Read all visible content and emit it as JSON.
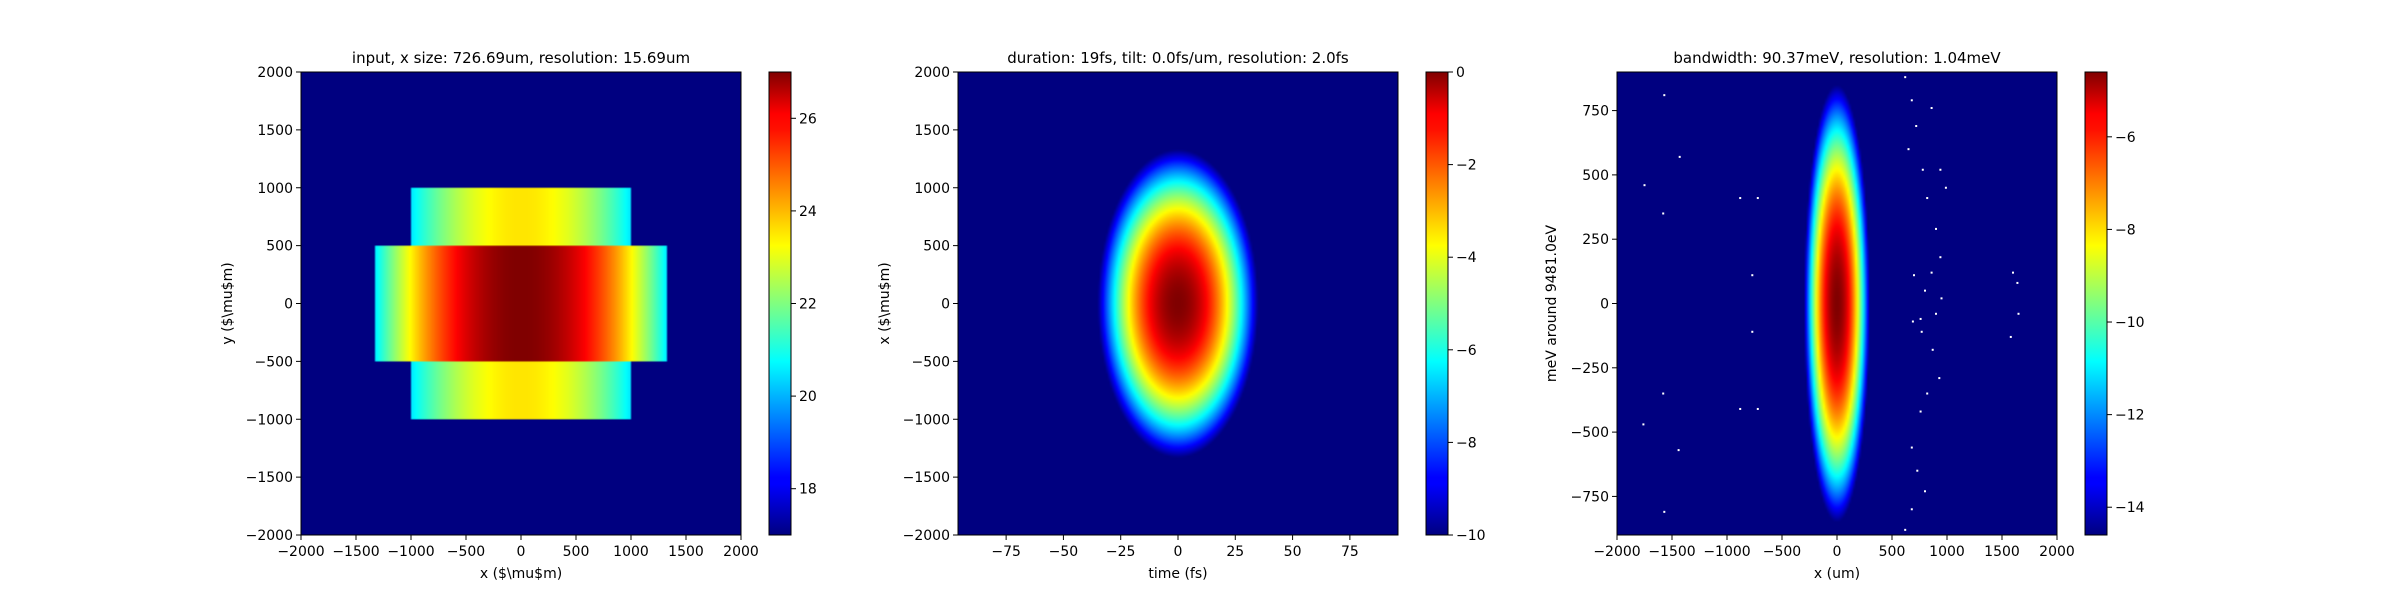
{
  "chart_data": [
    {
      "type": "heatmap",
      "title": "input, x size: 726.69um, resolution: 15.69um",
      "xlabel": "x ($\\mu$m)",
      "ylabel": "y ($\\mu$m)",
      "xlim": [
        -2000,
        2000
      ],
      "ylim": [
        -2000,
        2000
      ],
      "xticks": [
        -2000,
        -1500,
        -1000,
        -500,
        0,
        500,
        1000,
        1500,
        2000
      ],
      "yticks": [
        -2000,
        -1500,
        -1000,
        -500,
        0,
        500,
        1000,
        1500,
        2000
      ],
      "colormap": "jet",
      "colorbar": {
        "range": [
          17,
          27
        ],
        "ticks": [
          18,
          20,
          22,
          24,
          26
        ]
      },
      "background_value": 17,
      "field": {
        "description_kind": "stepped rectangular beam",
        "peak_value": 27,
        "regions": [
          {
            "x_range": [
              -1000,
              1000
            ],
            "y_range": [
              500,
              1000
            ],
            "center_value": 23.5,
            "edge_value": 20.5
          },
          {
            "x_range": [
              -1330,
              1330
            ],
            "y_range": [
              -500,
              500
            ],
            "center_value": 27,
            "edge_value": 20.5
          },
          {
            "x_range": [
              -1000,
              1000
            ],
            "y_range": [
              -1000,
              -500
            ],
            "center_value": 23.5,
            "edge_value": 20.5
          }
        ]
      }
    },
    {
      "type": "heatmap",
      "title": "duration: 19fs, tilt: 0.0fs/um, resolution: 2.0fs",
      "xlabel": "time (fs)",
      "ylabel": "x ($\\mu$m)",
      "xlim": [
        -96,
        96
      ],
      "ylim": [
        -2000,
        2000
      ],
      "xticks": [
        -75,
        -50,
        -25,
        0,
        25,
        50,
        75
      ],
      "yticks": [
        -2000,
        -1500,
        -1000,
        -500,
        0,
        500,
        1000,
        1500,
        2000
      ],
      "colormap": "jet",
      "colorbar": {
        "range": [
          -10,
          0
        ],
        "ticks": [
          -10,
          -8,
          -6,
          -4,
          -2,
          0
        ]
      },
      "field": {
        "description_kind": "gaussian ellipse",
        "center": [
          0,
          0
        ],
        "peak_value": 0,
        "min_value": -10,
        "half_extent_at_min": [
          35,
          1330
        ]
      }
    },
    {
      "type": "heatmap",
      "title": "bandwidth: 90.37meV, resolution: 1.04meV",
      "xlabel": "x (um)",
      "ylabel": "meV around 9481.0eV",
      "xlim": [
        -2000,
        2000
      ],
      "ylim": [
        -900,
        900
      ],
      "xticks": [
        -2000,
        -1500,
        -1000,
        -500,
        0,
        500,
        1000,
        1500,
        2000
      ],
      "yticks": [
        -750,
        -500,
        -250,
        0,
        250,
        500,
        750
      ],
      "colormap": "jet",
      "colorbar": {
        "range": [
          -14.6,
          -4.6
        ],
        "ticks": [
          -14,
          -12,
          -10,
          -8,
          -6
        ]
      },
      "field": {
        "description_kind": "gaussian ellipse",
        "center": [
          0,
          0
        ],
        "peak_value": -4.6,
        "min_value": -14.6,
        "half_extent_at_min": [
          300,
          850
        ]
      },
      "speckles": [
        [
          -1570,
          810
        ],
        [
          -1430,
          570
        ],
        [
          -1580,
          350
        ],
        [
          -1750,
          460
        ],
        [
          -880,
          410
        ],
        [
          -720,
          410
        ],
        [
          -770,
          110
        ],
        [
          -770,
          -110
        ],
        [
          -1580,
          -350
        ],
        [
          -1760,
          -470
        ],
        [
          -1440,
          -570
        ],
        [
          -1570,
          -810
        ],
        [
          -880,
          -410
        ],
        [
          -720,
          -410
        ],
        [
          620,
          880
        ],
        [
          680,
          790
        ],
        [
          720,
          690
        ],
        [
          650,
          600
        ],
        [
          780,
          520
        ],
        [
          820,
          410
        ],
        [
          900,
          290
        ],
        [
          940,
          180
        ],
        [
          860,
          120
        ],
        [
          700,
          110
        ],
        [
          800,
          50
        ],
        [
          950,
          20
        ],
        [
          760,
          -60
        ],
        [
          900,
          -40
        ],
        [
          690,
          -70
        ],
        [
          770,
          -110
        ],
        [
          870,
          -180
        ],
        [
          930,
          -290
        ],
        [
          820,
          -350
        ],
        [
          760,
          -420
        ],
        [
          680,
          -560
        ],
        [
          730,
          -650
        ],
        [
          800,
          -730
        ],
        [
          680,
          -800
        ],
        [
          620,
          -880
        ],
        [
          1600,
          120
        ],
        [
          1650,
          -40
        ],
        [
          1580,
          -130
        ],
        [
          1640,
          80
        ],
        [
          940,
          520
        ],
        [
          990,
          450
        ],
        [
          860,
          760
        ]
      ]
    }
  ]
}
